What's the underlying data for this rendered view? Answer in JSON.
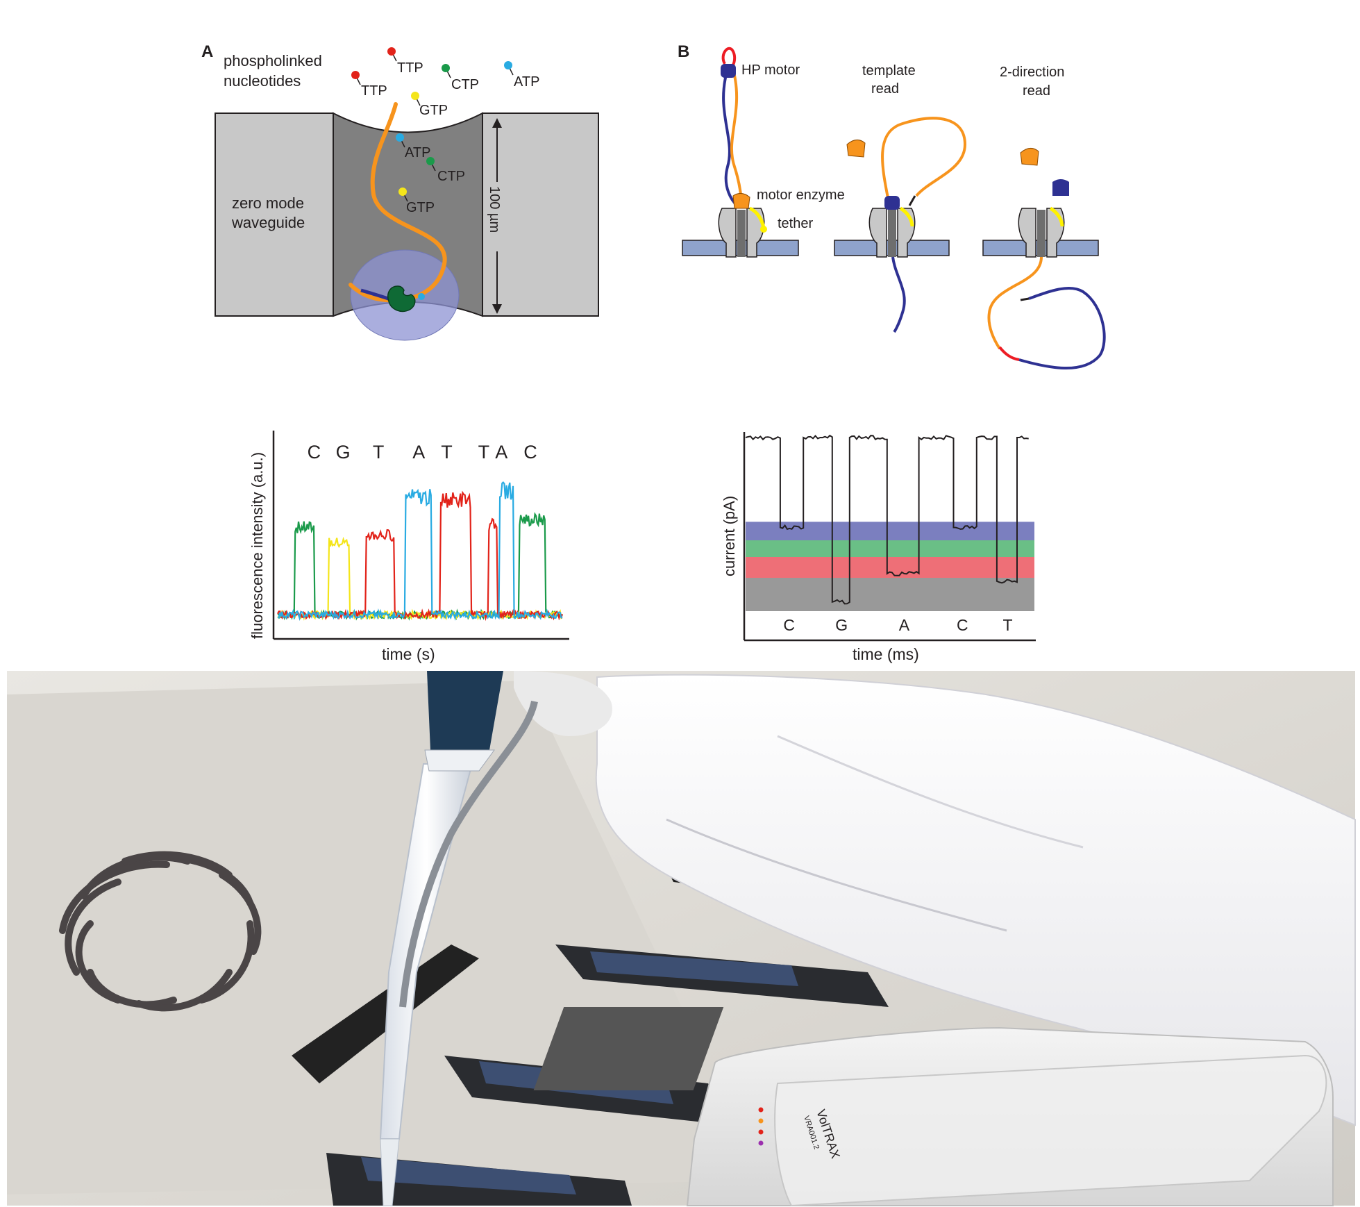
{
  "panel_a": {
    "letter": "A",
    "nucleotide_label_line1": "phospholinked",
    "nucleotide_label_line2": "nucleotides",
    "waveguide_line1": "zero mode",
    "waveguide_line2": "waveguide",
    "depth_label": "100 µm",
    "nucleotides": [
      {
        "text": "TTP",
        "color": "#e2231a"
      },
      {
        "text": "TTP",
        "color": "#e2231a"
      },
      {
        "text": "CTP",
        "color": "#1a9a4a"
      },
      {
        "text": "ATP",
        "color": "#29abe2"
      },
      {
        "text": "GTP",
        "color": "#f4e51a"
      },
      {
        "text": "ATP",
        "color": "#29abe2"
      },
      {
        "text": "CTP",
        "color": "#1a9a4a"
      },
      {
        "text": "GTP",
        "color": "#f4e51a"
      }
    ]
  },
  "panel_b": {
    "letter": "B",
    "hp_motor": "HP motor",
    "motor_enzyme": "motor enzyme",
    "tether": "tether",
    "template_line1": "template",
    "template_line2": "read",
    "twodir_line1": "2-direction",
    "twodir_line2": "read"
  },
  "colors": {
    "orange_strand": "#f7941d",
    "blue_strand": "#2e3192",
    "membrane": "#8fa3cc",
    "pore_grey": "#c8c8c8",
    "yellow": "#fff200",
    "red": "#ed1c24"
  },
  "chart_data": [
    {
      "type": "line",
      "title": "",
      "xlabel": "time (s)",
      "ylabel": "fluorescence intensity (a.u.)",
      "x_ticks": "none",
      "y_ticks": "none",
      "grid": false,
      "peak_labels": [
        {
          "text": "C",
          "color": "#1a9a4a"
        },
        {
          "text": "G",
          "color": "#f4e51a"
        },
        {
          "text": "T",
          "color": "#e2231a"
        },
        {
          "text": "A",
          "color": "#29abe2"
        },
        {
          "text": "T",
          "color": "#e2231a"
        },
        {
          "text": "T",
          "color": "#e2231a"
        },
        {
          "text": "A",
          "color": "#29abe2"
        },
        {
          "text": "C",
          "color": "#1a9a4a"
        }
      ],
      "series": [
        {
          "color": "#1a9a4a",
          "pulses": [
            [
              0.06,
              0.13,
              0.76
            ],
            [
              0.85,
              0.94,
              0.82
            ]
          ]
        },
        {
          "color": "#f4e51a",
          "pulses": [
            [
              0.18,
              0.25,
              0.64
            ]
          ]
        },
        {
          "color": "#e2231a",
          "pulses": [
            [
              0.31,
              0.41,
              0.7
            ],
            [
              0.57,
              0.68,
              0.98
            ],
            [
              0.74,
              0.77,
              0.78
            ]
          ]
        },
        {
          "color": "#29abe2",
          "pulses": [
            [
              0.45,
              0.54,
              1.0
            ],
            [
              0.78,
              0.83,
              1.05
            ]
          ]
        }
      ]
    },
    {
      "type": "line",
      "title": "",
      "xlabel": "time (ms)",
      "ylabel": "current (pA)",
      "x_ticks": "none",
      "y_ticks": "none",
      "grid": false,
      "levels": [
        {
          "base": "C",
          "color": "#2e3192",
          "band": "#7b7fbf"
        },
        {
          "base": "A",
          "color": "#1a9a4a",
          "band": "#6abf86"
        },
        {
          "base": "T",
          "color": "#e2231a",
          "band": "#ee6f77"
        },
        {
          "base": "G",
          "color": "#8a8a8a",
          "band": "#999999"
        }
      ],
      "base_labels": [
        {
          "text": "C",
          "color": "#2e3192"
        },
        {
          "text": "G",
          "color": "#8a8a8a"
        },
        {
          "text": "A",
          "color": "#1a9a4a"
        },
        {
          "text": "C",
          "color": "#2e3192"
        },
        {
          "text": "T",
          "color": "#e2231a"
        }
      ],
      "trace": [
        [
          0.0,
          1.0
        ],
        [
          0.12,
          1.0
        ],
        [
          0.12,
          0.125
        ],
        [
          0.2,
          0.125
        ],
        [
          0.2,
          1.0
        ],
        [
          0.3,
          1.0
        ],
        [
          0.3,
          -0.74
        ],
        [
          0.36,
          -0.74
        ],
        [
          0.36,
          1.0
        ],
        [
          0.49,
          1.0
        ],
        [
          0.49,
          -0.4
        ],
        [
          0.6,
          -0.4
        ],
        [
          0.6,
          1.0
        ],
        [
          0.72,
          1.0
        ],
        [
          0.72,
          0.125
        ],
        [
          0.8,
          0.125
        ],
        [
          0.8,
          1.0
        ],
        [
          0.87,
          1.0
        ],
        [
          0.87,
          -0.49
        ],
        [
          0.94,
          -0.49
        ],
        [
          0.94,
          1.0
        ],
        [
          0.98,
          1.0
        ]
      ]
    }
  ],
  "photo": {
    "device_text": "VolTRAX",
    "device_code": "VRA001.2"
  }
}
